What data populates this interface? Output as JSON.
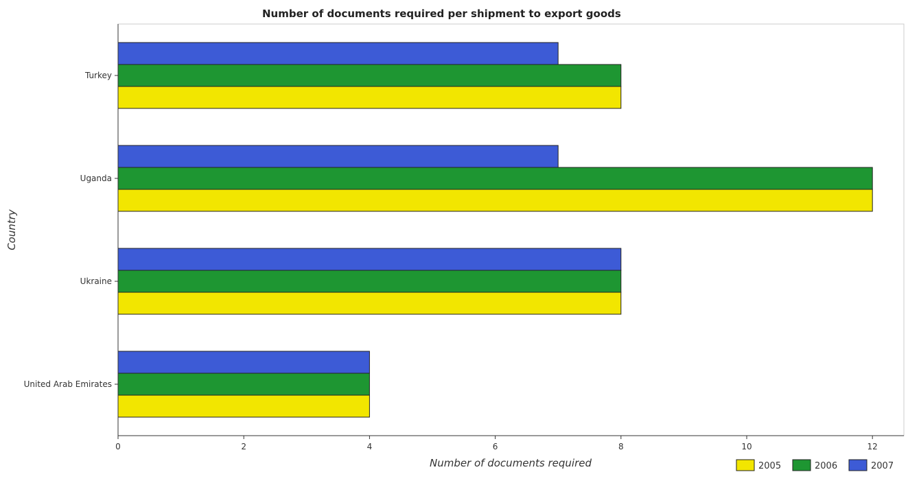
{
  "chart_data": {
    "type": "bar",
    "orientation": "horizontal",
    "title": "Number of documents required per shipment to export goods",
    "xlabel": "Number of documents required",
    "ylabel": "Country",
    "categories": [
      "Turkey",
      "Uganda",
      "Ukraine",
      "United Arab Emirates"
    ],
    "series": [
      {
        "name": "2005",
        "color": "#f2e600",
        "values": [
          8,
          12,
          8,
          4
        ]
      },
      {
        "name": "2006",
        "color": "#1e9632",
        "values": [
          8,
          12,
          8,
          4
        ]
      },
      {
        "name": "2007",
        "color": "#3d5bd6",
        "values": [
          7,
          7,
          8,
          4
        ]
      }
    ],
    "xlim": [
      0,
      12.5
    ],
    "xticks": [
      0,
      2,
      4,
      6,
      8,
      10,
      12
    ],
    "xtick_labels": [
      "0",
      "2",
      "4",
      "6",
      "8",
      "10",
      "12"
    ],
    "grid": false,
    "legend_position": "bottom-right"
  }
}
